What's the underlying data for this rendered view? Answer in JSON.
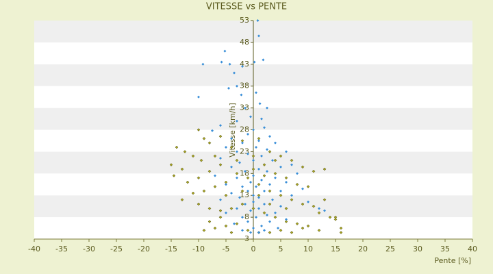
{
  "chart_data": {
    "type": "scatter",
    "title": "VITESSE vs PENTE",
    "x_label": "Pente [%]",
    "y_label": "Vitesse [km/h]",
    "xlim": [
      -40,
      40
    ],
    "xticks": [
      -40,
      -35,
      -30,
      -25,
      -20,
      -15,
      -10,
      -5,
      0,
      5,
      10,
      15,
      20,
      25,
      30,
      35,
      40
    ],
    "ylim": [
      3,
      53
    ],
    "yticks": [
      3,
      8,
      13,
      18,
      23,
      28,
      33,
      38,
      43,
      48,
      53
    ],
    "grid": "bands",
    "series": [
      {
        "color": "#a8a424",
        "x": [
          -10,
          -9,
          -14,
          -12.5,
          -8,
          -6,
          -11,
          -15,
          -13,
          -9.5,
          -7,
          -4,
          -2,
          1,
          3,
          5,
          7,
          9,
          11,
          13,
          -14.5,
          -12,
          -10,
          -8,
          -6,
          -3,
          0,
          2,
          4,
          6,
          8,
          10,
          -13,
          -11,
          -9,
          -7,
          -5,
          -1,
          1,
          3,
          5,
          7,
          9,
          11,
          12,
          14,
          16,
          -10,
          -8,
          -6,
          -4,
          -2,
          0,
          2,
          4,
          6,
          8,
          10,
          12,
          15,
          -9,
          -7,
          -5,
          -3,
          -1,
          1,
          3,
          5,
          7,
          9,
          -8,
          -6,
          -4,
          13,
          15,
          16,
          -2,
          0,
          2,
          4,
          -3,
          1,
          6,
          -5,
          3
        ],
        "values": [
          28,
          26,
          24,
          23,
          25,
          26.5,
          22,
          20,
          19,
          21,
          22,
          24,
          25.5,
          26,
          23,
          22,
          21,
          19.5,
          18.5,
          19,
          17.5,
          16,
          17,
          18.5,
          20,
          21,
          22,
          20,
          18,
          17,
          15.5,
          15,
          12,
          13.5,
          14,
          15,
          16,
          17,
          15.5,
          14,
          13,
          12,
          11,
          10.5,
          9,
          8,
          5.5,
          11,
          10,
          9.5,
          10,
          11,
          10,
          9,
          8,
          7,
          6.5,
          6,
          5,
          7.5,
          5,
          5.5,
          6,
          6.5,
          5,
          4.5,
          4.5,
          5,
          4.5,
          5.5,
          7,
          8,
          4.5,
          12,
          8,
          4.5,
          14,
          19,
          17.5,
          21,
          18,
          13,
          10,
          13,
          11
        ]
      },
      {
        "color": "#3a8fd8",
        "x": [
          0.8,
          1,
          -5.2,
          -9.2,
          -5.8,
          -4.3,
          -3.5,
          -2,
          1.8,
          0.2,
          -3,
          -4.5,
          -2.2,
          -10,
          0.5,
          1.2,
          -1.5,
          2.5,
          -0.5,
          1.5,
          -3,
          -6,
          -7.5,
          2,
          0,
          -1,
          3,
          -4,
          1,
          -2,
          4,
          -5,
          0.5,
          2.5,
          -3,
          6,
          -1,
          1.5,
          -6,
          3.5,
          0,
          -2.5,
          7,
          5,
          -4,
          1,
          -1.5,
          2.5,
          8,
          -7,
          0,
          4,
          -3,
          1.5,
          -0.5,
          6,
          -5,
          3,
          -2,
          0.5,
          9,
          2,
          -1,
          5,
          -4,
          0,
          7,
          -2.5,
          1,
          3.5,
          -6,
          10,
          0,
          -1.5,
          2,
          5,
          -3,
          12,
          1,
          -0.5,
          4,
          -5,
          13,
          2.5,
          -2,
          0.5,
          6,
          -1,
          3,
          -3.5,
          1.5,
          0,
          4.5,
          -2,
          2,
          -0.5,
          1
        ],
        "values": [
          53,
          49.5,
          46,
          43,
          43.5,
          43,
          41,
          42.5,
          44,
          43.5,
          38,
          37.5,
          36,
          35.5,
          36.5,
          34,
          33,
          33,
          31,
          30.5,
          30,
          29,
          27.8,
          28.5,
          28,
          27,
          26.5,
          26,
          25.5,
          25,
          25,
          24,
          24,
          23.5,
          23,
          23,
          22.5,
          22,
          21.5,
          21,
          21,
          20.5,
          20,
          19.5,
          19.5,
          19,
          18.5,
          18.5,
          18,
          17.5,
          17.5,
          17,
          17,
          16.5,
          16,
          16,
          15.5,
          15.5,
          15,
          15,
          14.5,
          14,
          14,
          14,
          13.5,
          13,
          13,
          12.5,
          12.5,
          12,
          12,
          11.5,
          11.5,
          11,
          11,
          10.5,
          10,
          10,
          10,
          9.5,
          9,
          9,
          9.5,
          8.5,
          8,
          8,
          7.5,
          7,
          7,
          6.5,
          6,
          5.5,
          5.5,
          5,
          5,
          4.5,
          4.5
        ]
      }
    ]
  }
}
